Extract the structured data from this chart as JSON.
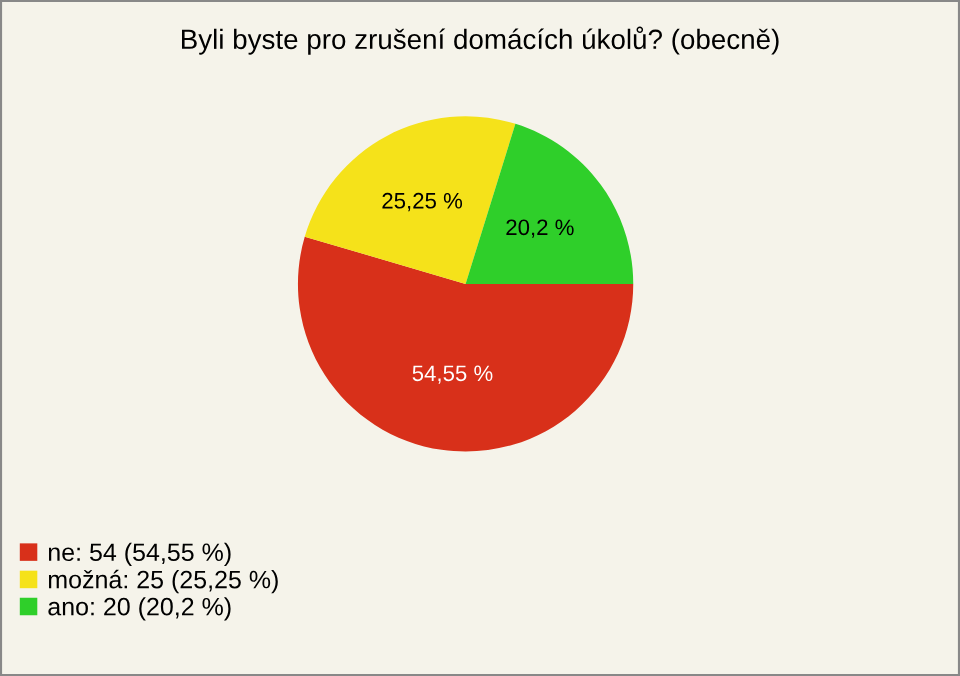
{
  "chart_data": {
    "type": "pie",
    "title": "Byli byste pro zrušení domácích úkolů? (obecně)",
    "categories": [
      "ne: 54 (54,55 %)",
      "možná: 25 (25,25 %)",
      "ano: 20 (20,2 %)"
    ],
    "values": [
      54.55,
      25.25,
      20.2
    ],
    "value_labels": [
      "54,55 %",
      "25,25 %",
      "20,2 %"
    ],
    "colors": [
      "#d8301a",
      "#f5e21a",
      "#2fcf2a"
    ],
    "legend": "bottom left"
  }
}
